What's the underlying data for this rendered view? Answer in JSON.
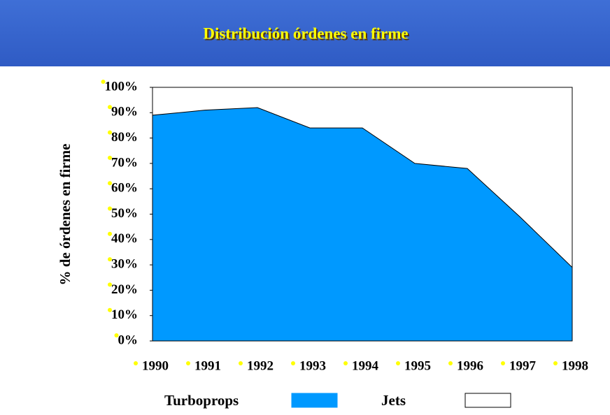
{
  "chart_data": {
    "type": "stacked_area",
    "title": "Distribución órdenes en firme",
    "y_label": "% de órdenes en firme",
    "categories": [
      "1990",
      "1991",
      "1992",
      "1993",
      "1994",
      "1995",
      "1996",
      "1997",
      "1998"
    ],
    "series": [
      {
        "name": "Turboprops",
        "color": "#0099ff",
        "values": [
          89,
          91,
          92,
          84,
          84,
          70,
          68,
          49,
          29
        ]
      },
      {
        "name": "Jets",
        "color": "#ffffff",
        "values": [
          11,
          9,
          8,
          16,
          16,
          30,
          32,
          51,
          71
        ]
      }
    ],
    "ylim": [
      0,
      100
    ],
    "yticks": [
      {
        "value": 0,
        "label": "0%"
      },
      {
        "value": 10,
        "label": "10%"
      },
      {
        "value": 20,
        "label": "20%"
      },
      {
        "value": 30,
        "label": "30%"
      },
      {
        "value": 40,
        "label": "40%"
      },
      {
        "value": 50,
        "label": "50%"
      },
      {
        "value": 60,
        "label": "60%"
      },
      {
        "value": 70,
        "label": "70%"
      },
      {
        "value": 80,
        "label": "80%"
      },
      {
        "value": 90,
        "label": "90%"
      },
      {
        "value": 100,
        "label": "100%"
      }
    ]
  }
}
